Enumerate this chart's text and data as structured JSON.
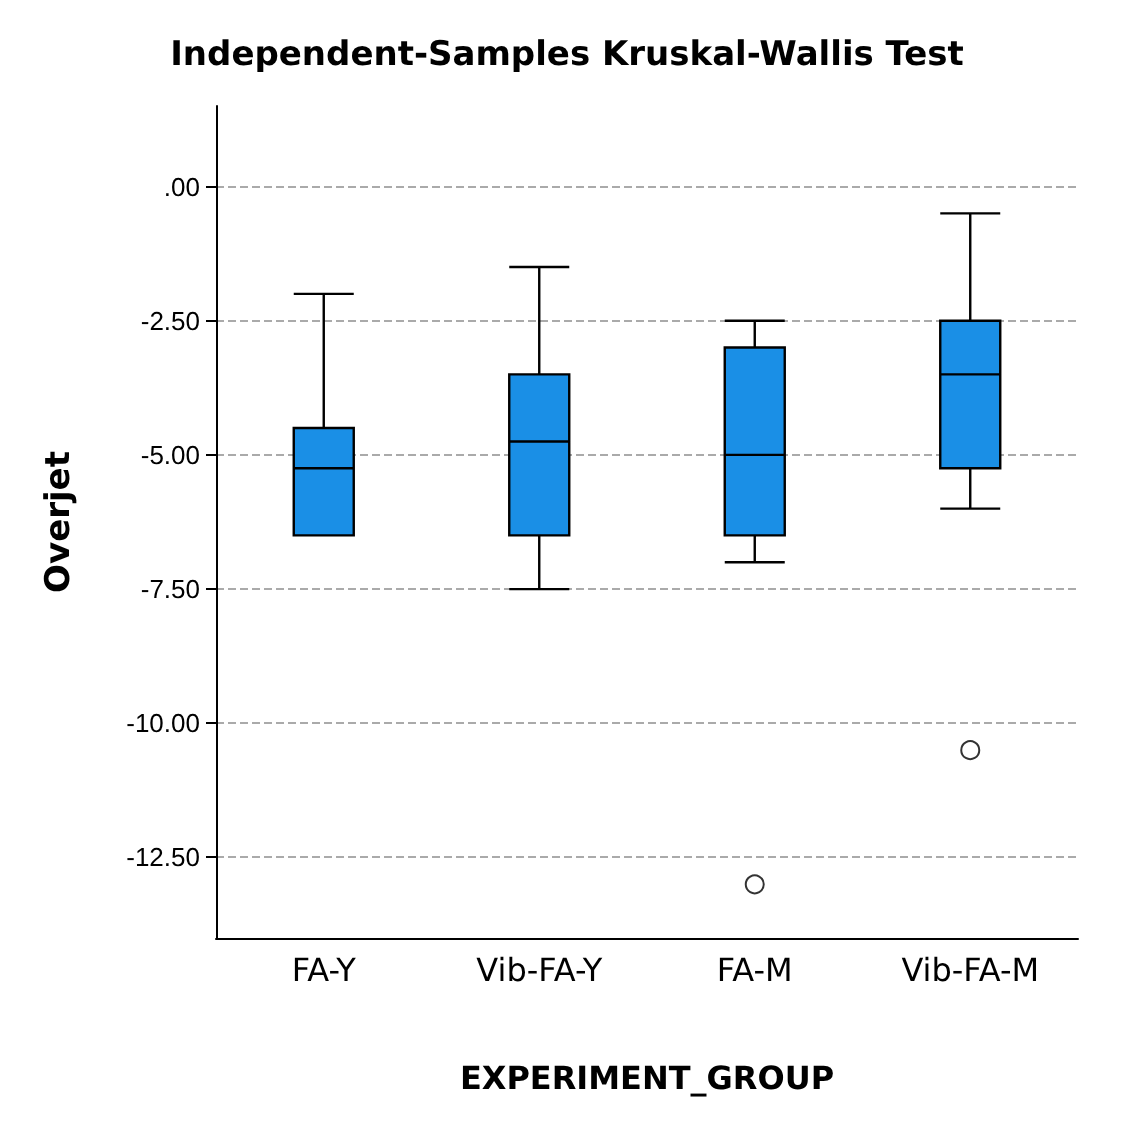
{
  "chart_data": {
    "type": "box",
    "title": "Independent-Samples Kruskal-Wallis Test",
    "xlabel": "EXPERIMENT_GROUP",
    "ylabel": "Overjet",
    "categories": [
      "FA-Y",
      "Vib-FA-Y",
      "FA-M",
      "Vib-FA-M"
    ],
    "color": "#1a8fe6",
    "boxes": [
      {
        "low": -6.5,
        "q1": -6.5,
        "median": -5.25,
        "q3": -4.5,
        "high": -2.0
      },
      {
        "low": -7.5,
        "q1": -6.5,
        "median": -4.75,
        "q3": -3.5,
        "high": -1.5
      },
      {
        "low": -7.0,
        "q1": -6.5,
        "median": -5.0,
        "q3": -3.0,
        "high": -2.5,
        "outliers": [
          -13.0
        ]
      },
      {
        "low": -6.0,
        "q1": -5.25,
        "median": -3.5,
        "q3": -2.5,
        "high": -0.5,
        "outliers": [
          -10.5
        ]
      }
    ],
    "ylim": [
      -14,
      1.5
    ],
    "yticks": [
      {
        "value": 0,
        "label": ".00"
      },
      {
        "value": -2.5,
        "label": "-2.50"
      },
      {
        "value": -5,
        "label": "-5.00"
      },
      {
        "value": -7.5,
        "label": "-7.50"
      },
      {
        "value": -10,
        "label": "-10.00"
      },
      {
        "value": -12.5,
        "label": "-12.50"
      }
    ],
    "grid": "y",
    "marker": "circle"
  }
}
